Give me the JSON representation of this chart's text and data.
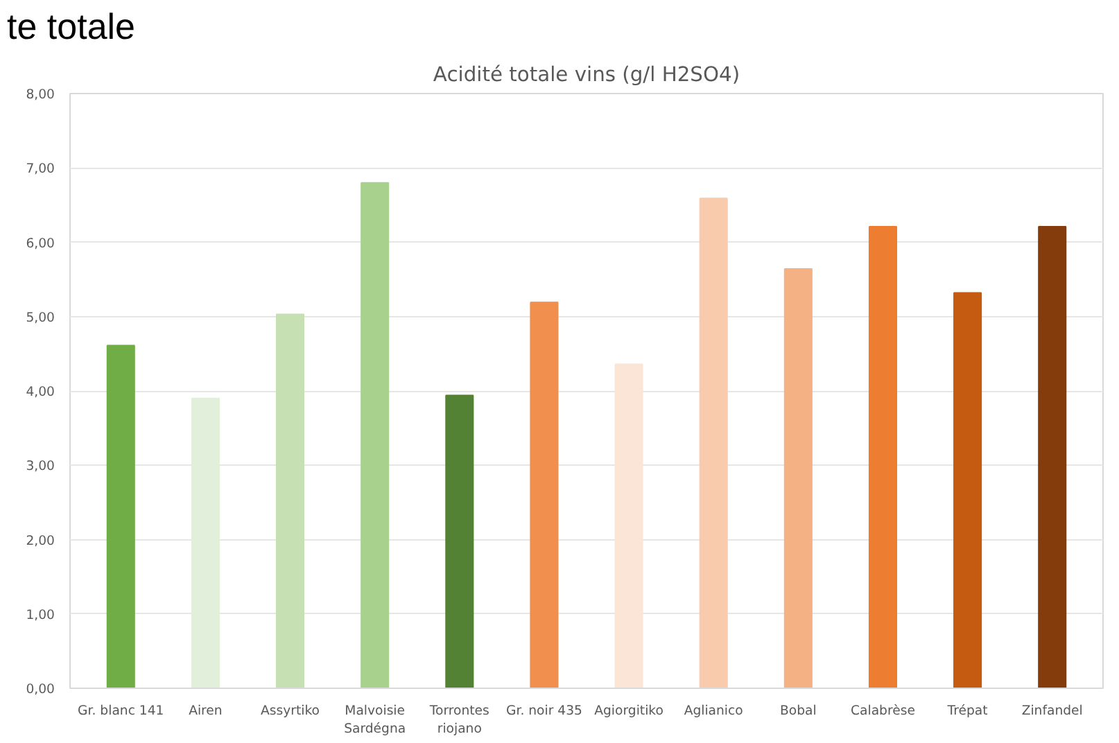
{
  "chart_data": {
    "type": "bar",
    "title": "Acidité totale vins (g/l H2SO4)",
    "annotations": [
      "te totale"
    ],
    "categories": [
      "Gr. blanc 141",
      "Airen",
      "Assyrtiko",
      "Malvoisie\nSardégna",
      "Torrontes\nriojano",
      "Gr. noir 435",
      "Agiorgitiko",
      "Aglianico",
      "Bobal",
      "Calabrèse",
      "Trépat",
      "Zinfandel"
    ],
    "values": [
      4.61,
      3.9,
      5.03,
      6.8,
      3.94,
      5.19,
      4.36,
      6.59,
      5.64,
      6.21,
      5.32,
      6.21
    ],
    "colors": [
      "#70ad47",
      "#e2efda",
      "#c6e0b4",
      "#a9d18e",
      "#548235",
      "#f08f4e",
      "#fbe5d6",
      "#f8cbad",
      "#f4b183",
      "#ed7d31",
      "#c55a11",
      "#843c0c"
    ],
    "ylim": [
      0,
      8
    ],
    "yticks": [
      {
        "value": 0,
        "label": "0,00"
      },
      {
        "value": 1,
        "label": "1,00"
      },
      {
        "value": 2,
        "label": "2,00"
      },
      {
        "value": 3,
        "label": "3,00"
      },
      {
        "value": 4,
        "label": "4,00"
      },
      {
        "value": 5,
        "label": "5,00"
      },
      {
        "value": 6,
        "label": "6,00"
      },
      {
        "value": 7,
        "label": "7,00"
      },
      {
        "value": 8,
        "label": "8,00"
      }
    ],
    "grid": "y"
  }
}
